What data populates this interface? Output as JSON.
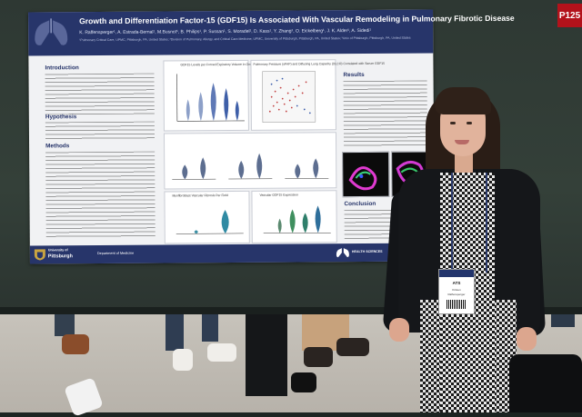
{
  "poster": {
    "title": "Growth and Differentiation Factor-15 (GDF15) Is Associated With Vascular Remodeling in Pulmonary Fibrotic Disease",
    "authors": "K. Raffensperger¹, A. Estrada-Bernal¹, M.Busnot¹, B. Philips¹, P. Sussan¹, S. Moradel¹, D. Kass¹, Y. Zhang¹, O. Eickelberg¹, J. K. Alder¹, A. Sidedi¹",
    "affiliations": "¹Pulmonary Critical Care, UPMC, Pittsburgh, PA, United States; ²Division of Pulmonary, Allergy, and Critical Care Medicine, UPMC, University of Pittsburgh, Pittsburgh, PA, United States; ³Univ of Pittsburgh, Pittsburgh, PA, United States",
    "sections": {
      "introduction": "Introduction",
      "hypothesis": "Hypothesis",
      "methods": "Methods",
      "results": "Results",
      "conclusion": "Conclusion"
    },
    "panels": {
      "panel_a": "GDF15 Levels per Forced Expiratory Volume in One Second (FEV1) Severity",
      "panel_b": "Pulmonary Pressure (sPAP) and Diffusing Lung Capacity (DLCO) Correlated with Serum GDF15",
      "panel_c": "Myofibroblast Vascular Fibrosis Per Field",
      "panel_d": "Vascular GDF15 Expression"
    },
    "footer": {
      "university_line1": "University of",
      "university_line2": "Pittsburgh",
      "partner": "Department of Medicine",
      "tagline": "HEALTH SCIENCES"
    }
  },
  "booth": {
    "post_tag": "P125"
  },
  "badge": {
    "event": "ATS",
    "name": "Kristen",
    "sub": "Raffensperger"
  }
}
